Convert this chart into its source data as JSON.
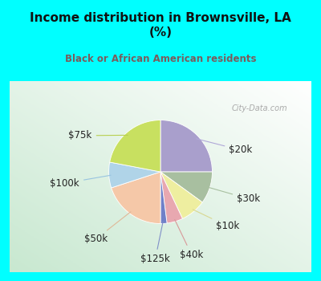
{
  "title": "Income distribution in Brownsville, LA\n(%)",
  "subtitle": "Black or African American residents",
  "title_color": "#111111",
  "subtitle_color": "#7a5c5c",
  "bg_cyan": "#00FFFF",
  "labels": [
    "$20k",
    "$30k",
    "$10k",
    "$40k",
    "$125k",
    "$50k",
    "$100k",
    "$75k"
  ],
  "values": [
    25,
    10,
    8,
    5,
    2,
    20,
    8,
    22
  ],
  "colors": [
    "#a99fcc",
    "#a8bfa0",
    "#eeeea0",
    "#e8a8b0",
    "#7080c8",
    "#f5c8a8",
    "#b0d4e8",
    "#c8e060"
  ],
  "line_colors": [
    "#b0a8d8",
    "#a8c0a0",
    "#d8d890",
    "#d89898",
    "#8090c8",
    "#e0b898",
    "#98c4e0",
    "#b8d050"
  ],
  "startangle": 90,
  "label_fontsize": 8.5,
  "label_color": "#222222",
  "title_fontsize": 11,
  "subtitle_fontsize": 8.5,
  "watermark": "City-Data.com",
  "watermark_color": "#aaaaaa"
}
